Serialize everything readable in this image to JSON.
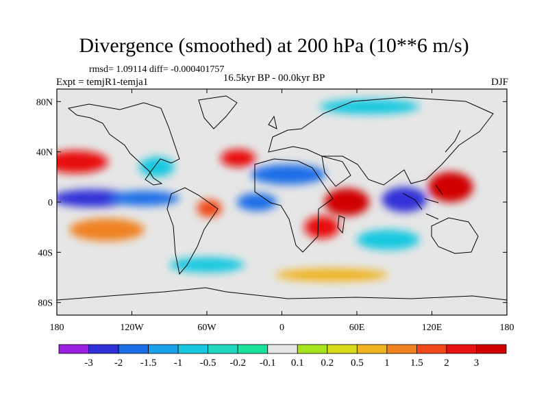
{
  "chart_data": {
    "type": "heatmap",
    "title": "Divergence (smoothed) at 200 hPa (10**6 m/s)",
    "stats": "rmsd= 1.09114 diff= -0.000401757",
    "experiment": "Expt = temjR1-temja1",
    "period": "16.5kyr BP - 00.0kyr BP",
    "season": "DJF",
    "x_ticks": [
      {
        "value": -180,
        "label": "180"
      },
      {
        "value": -120,
        "label": "120W"
      },
      {
        "value": -60,
        "label": "60W"
      },
      {
        "value": 0,
        "label": "0"
      },
      {
        "value": 60,
        "label": "60E"
      },
      {
        "value": 120,
        "label": "120E"
      },
      {
        "value": 180,
        "label": "180"
      }
    ],
    "y_ticks": [
      {
        "value": 80,
        "label": "80N"
      },
      {
        "value": 40,
        "label": "40N"
      },
      {
        "value": 0,
        "label": "0"
      },
      {
        "value": -40,
        "label": "40S"
      },
      {
        "value": -80,
        "label": "80S"
      }
    ],
    "xlim": [
      -180,
      180
    ],
    "ylim": [
      -90,
      90
    ],
    "colorbar": {
      "levels": [
        "-3",
        "-2",
        "-1.5",
        "-1",
        "-0.5",
        "-0.2",
        "-0.1",
        "0.1",
        "0.2",
        "0.5",
        "1",
        "1.5",
        "2",
        "3"
      ],
      "colors": [
        "#9b1fe0",
        "#3030d8",
        "#1a6ee8",
        "#1aa0e8",
        "#19c8e0",
        "#20d8c0",
        "#19e29a",
        "#e6e6e6",
        "#a6e41e",
        "#d8dc1a",
        "#f0b41e",
        "#f08220",
        "#f04818",
        "#e81010",
        "#d00000"
      ]
    },
    "features": [
      {
        "name": "equatorial-pacific-convergence",
        "lon": -152,
        "lat": 3,
        "value": -3.0,
        "rx": 32,
        "ry": 7
      },
      {
        "name": "central-pacific-convergence",
        "lon": -110,
        "lat": 3,
        "value": -2.0,
        "rx": 28,
        "ry": 6
      },
      {
        "name": "indonesia-convergence",
        "lon": 98,
        "lat": 2,
        "value": -3.0,
        "rx": 18,
        "ry": 10
      },
      {
        "name": "atlantic-convergence",
        "lon": -20,
        "lat": 0,
        "value": -2.0,
        "rx": 16,
        "ry": 7
      },
      {
        "name": "sahara-convergence",
        "lon": 5,
        "lat": 22,
        "value": -2.0,
        "rx": 30,
        "ry": 8
      },
      {
        "name": "africa-divergence",
        "lon": 52,
        "lat": 0,
        "value": 3.0,
        "rx": 18,
        "ry": 11
      },
      {
        "name": "west-pacific-divergence",
        "lon": 135,
        "lat": 12,
        "value": 3.0,
        "rx": 18,
        "ry": 12
      },
      {
        "name": "south-africa-divergence",
        "lon": 32,
        "lat": -20,
        "value": 2.0,
        "rx": 14,
        "ry": 9
      },
      {
        "name": "north-pacific-divergence",
        "lon": -165,
        "lat": 32,
        "value": 2.0,
        "rx": 26,
        "ry": 9
      },
      {
        "name": "amazon-divergence",
        "lon": -58,
        "lat": -5,
        "value": 1.5,
        "rx": 10,
        "ry": 7
      },
      {
        "name": "south-pacific-divergence",
        "lon": -140,
        "lat": -22,
        "value": 1.0,
        "rx": 30,
        "ry": 9
      },
      {
        "name": "north-atlantic-divergence",
        "lon": -35,
        "lat": 35,
        "value": 2.0,
        "rx": 14,
        "ry": 7
      },
      {
        "name": "arctic-convergence",
        "lon": 70,
        "lat": 76,
        "value": -1.0,
        "rx": 40,
        "ry": 6
      },
      {
        "name": "south-indian-convergence",
        "lon": 85,
        "lat": -30,
        "value": -1.0,
        "rx": 25,
        "ry": 8
      },
      {
        "name": "southern-ocean-convergence",
        "lon": -60,
        "lat": -50,
        "value": -1.0,
        "rx": 30,
        "ry": 6
      },
      {
        "name": "mexico-convergence",
        "lon": -100,
        "lat": 28,
        "value": -1.0,
        "rx": 14,
        "ry": 8
      },
      {
        "name": "southern-ocean-divergence",
        "lon": 40,
        "lat": -58,
        "value": 0.5,
        "rx": 45,
        "ry": 5
      }
    ]
  }
}
